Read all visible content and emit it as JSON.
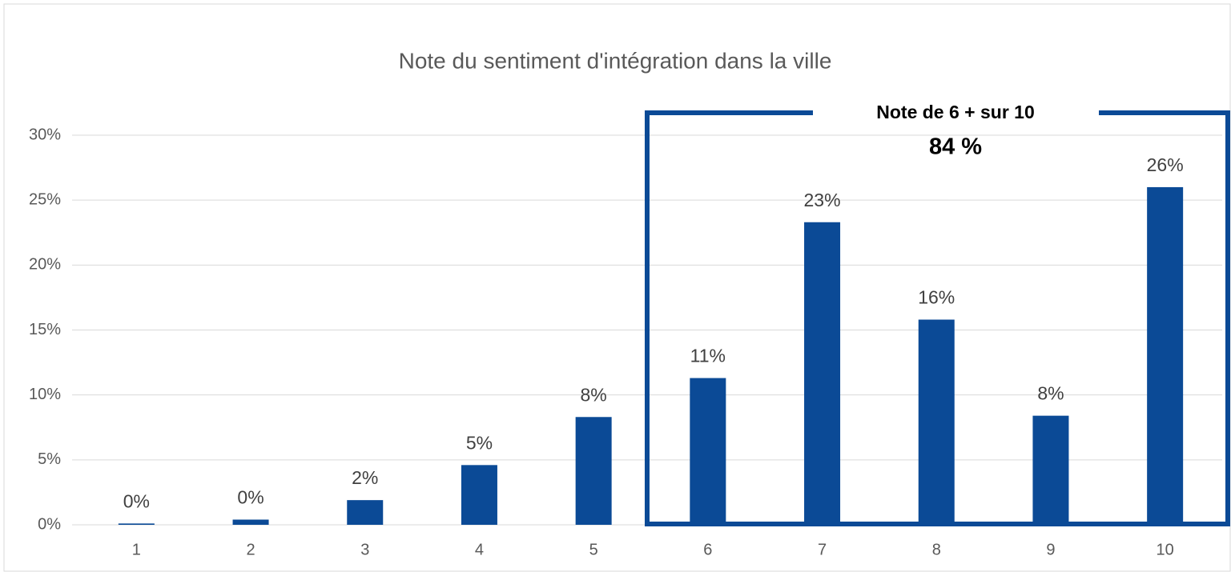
{
  "chart_data": {
    "type": "bar",
    "title": "Note du sentiment d'intégration dans la ville",
    "categories": [
      "1",
      "2",
      "3",
      "4",
      "5",
      "6",
      "7",
      "8",
      "9",
      "10"
    ],
    "values": [
      0.1,
      0.4,
      1.9,
      4.6,
      8.3,
      11.3,
      23.3,
      15.8,
      8.4,
      26.0
    ],
    "value_labels": [
      "0%",
      "0%",
      "2%",
      "5%",
      "8%",
      "11%",
      "23%",
      "16%",
      "8%",
      "26%"
    ],
    "color": "#0b4a96",
    "ylim": [
      0,
      30
    ],
    "yticks": [
      {
        "value": 0,
        "label": "0%"
      },
      {
        "value": 5,
        "label": "5%"
      },
      {
        "value": 10,
        "label": "10%"
      },
      {
        "value": 15,
        "label": "15%"
      },
      {
        "value": 20,
        "label": "20%"
      },
      {
        "value": 25,
        "label": "25%"
      },
      {
        "value": 30,
        "label": "30%"
      }
    ],
    "grid": true,
    "annotation": {
      "title": "Note de 6 + sur 10",
      "value": "84 %"
    }
  }
}
